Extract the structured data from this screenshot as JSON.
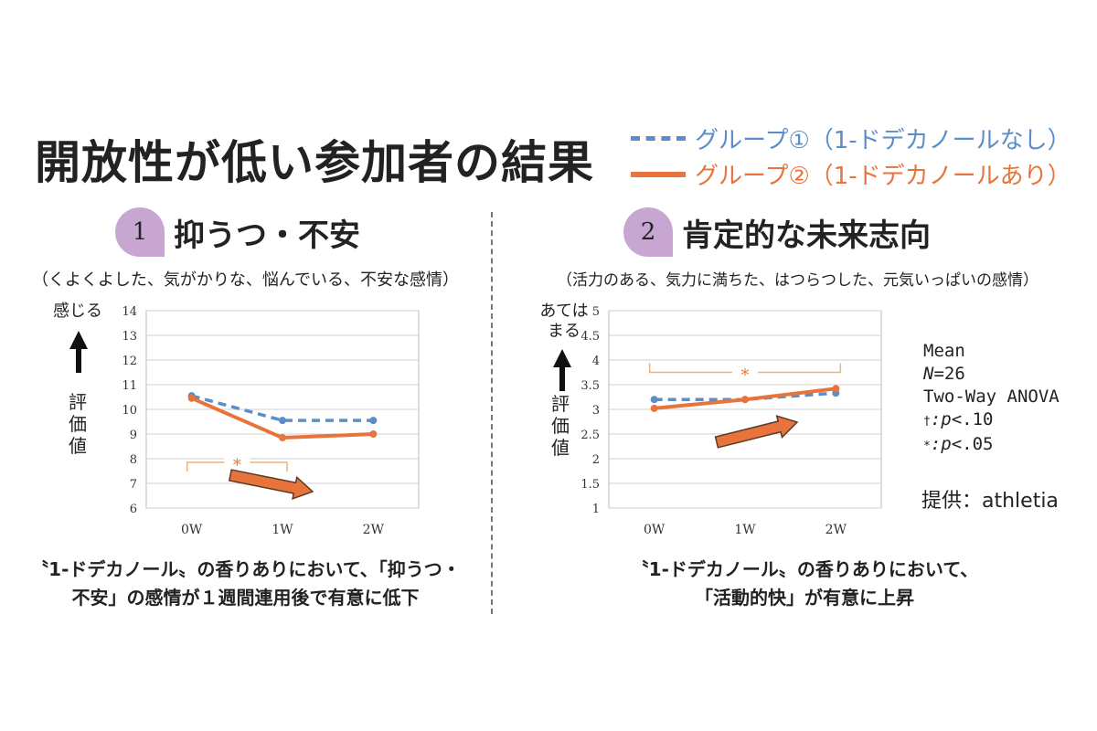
{
  "title": "開放性が低い参加者の結果",
  "legend": [
    {
      "label": "グループ①（1-ドデカノールなし）",
      "color": "#5b8ec8",
      "style": "dashed"
    },
    {
      "label": "グループ②（1-ドデカノールあり）",
      "color": "#e8743b",
      "style": "solid"
    }
  ],
  "panels": [
    {
      "number": "1",
      "title": "抑うつ・不安",
      "subtitle": "（くよくよした、気がかりな、悩んでいる、不安な感情）",
      "y_top_label": "感じる",
      "y_axis_label": "評価値",
      "caption_line1": "〝1-ドデカノール〟の香りありにおいて、「抑うつ・",
      "caption_line2": "不安」の感情が１週間連用後で有意に低下"
    },
    {
      "number": "2",
      "title": "肯定的な未来志向",
      "subtitle": "（活力のある、気力に満ちた、はつらつした、元気いっぱいの感情）",
      "y_top_label": "あてはまる",
      "y_axis_label": "評価値",
      "caption_line1": "〝1-ドデカノール〟の香りありにおいて、",
      "caption_line2": "「活動的快」が有意に上昇"
    }
  ],
  "stats": {
    "mean": "Mean",
    "n_italic": "N",
    "n_value": "=26",
    "anova": "Two-Way ANOVA",
    "dagger_sym": "†",
    "dagger_p": ":p",
    "dagger_val": "<.10",
    "star_sym": "*",
    "star_p": ":p",
    "star_val": "<.05"
  },
  "credit": "提供：athletia",
  "chart_data": [
    {
      "type": "line",
      "categories": [
        "0W",
        "1W",
        "2W"
      ],
      "ylim": [
        6,
        14
      ],
      "yticks": [
        6,
        7,
        8,
        9,
        10,
        11,
        12,
        13,
        14
      ],
      "grid": true,
      "series": [
        {
          "name": "グループ①（1-ドデカノールなし）",
          "values": [
            10.55,
            9.55,
            9.55
          ],
          "color": "#5b8ec8",
          "dash": true
        },
        {
          "name": "グループ②（1-ドデカノールあり）",
          "values": [
            10.45,
            8.85,
            9.0
          ],
          "color": "#e8743b",
          "dash": false
        }
      ],
      "significance": {
        "label": "*",
        "from": "0W",
        "to": "1W",
        "y": 7.85,
        "side": "below"
      },
      "trend_arrow": "down"
    },
    {
      "type": "line",
      "categories": [
        "0W",
        "1W",
        "2W"
      ],
      "ylim": [
        1,
        5
      ],
      "yticks": [
        "1",
        "1.5",
        "2",
        "2.5",
        "3",
        "3.5",
        "4",
        "4.5",
        "5"
      ],
      "grid": true,
      "series": [
        {
          "name": "グループ①（1-ドデカノールなし）",
          "values": [
            3.2,
            3.2,
            3.33
          ],
          "color": "#5b8ec8",
          "dash": true
        },
        {
          "name": "グループ②（1-ドデカノールあり）",
          "values": [
            3.02,
            3.2,
            3.42
          ],
          "color": "#e8743b",
          "dash": false
        }
      ],
      "significance": {
        "label": "*",
        "from": "0W",
        "to": "2W",
        "y": 3.75,
        "side": "above"
      },
      "trend_arrow": "up"
    }
  ]
}
